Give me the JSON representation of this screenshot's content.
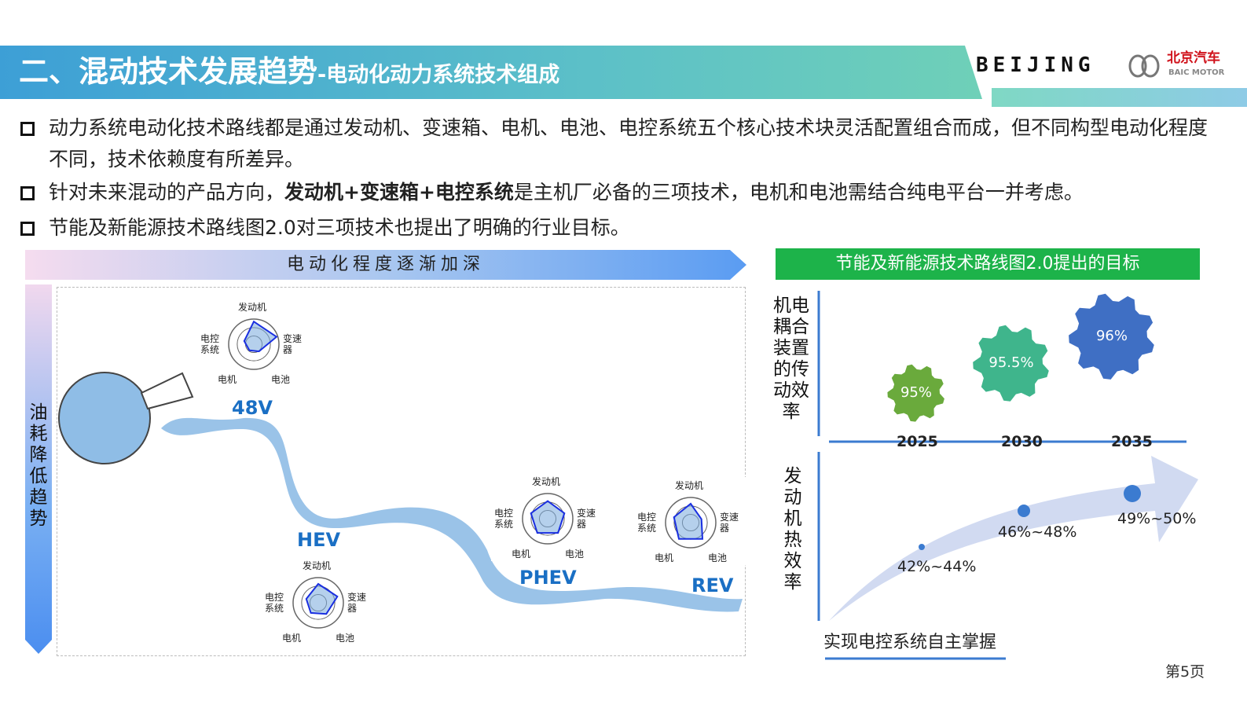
{
  "header": {
    "title_main": "二、混动技术发展趋势",
    "title_sub": "-电动化动力系统技术组成",
    "logo_beijing": "BEIJING",
    "logo_cn": "北京汽车",
    "logo_en": "BAIC MOTOR"
  },
  "bullets": [
    {
      "text": "动力系统电动化技术路线都是通过发动机、变速箱、电机、电池、电控系统五个核心技术块灵活配置组合而成，但不同构型电动化程度不同，技术依赖度有所差异。"
    },
    {
      "pre": "针对未来混动的产品方向，",
      "bold": "发动机+变速箱+电控系统",
      "post": "是主机厂必备的三项技术，电机和电池需结合纯电平台一并考虑。"
    },
    {
      "text": "节能及新能源技术路线图2.0对三项技术也提出了明确的行业目标。"
    }
  ],
  "left": {
    "banner": "电动化程度逐渐加深",
    "vertical": "油耗降低趋势",
    "axes": [
      "发动机",
      "变速器",
      "电池",
      "电机",
      "电控系统"
    ],
    "radars": [
      {
        "label": "48V",
        "values": [
          0.9,
          0.95,
          0.35,
          0.3,
          0.4
        ]
      },
      {
        "label": "HEV",
        "values": [
          0.75,
          0.8,
          0.55,
          0.5,
          0.5
        ]
      },
      {
        "label": "PHEV",
        "values": [
          0.7,
          0.7,
          0.7,
          0.7,
          0.7
        ]
      },
      {
        "label": "REV",
        "values": [
          0.75,
          0.45,
          0.8,
          0.8,
          0.7
        ]
      }
    ]
  },
  "right": {
    "banner": "节能及新能源技术路线图2.0提出的目标",
    "label_top": "机电耦合装置的传动效率",
    "label_bottom": "发动机热效率",
    "years": [
      "2025",
      "2030",
      "2035"
    ],
    "gears": [
      {
        "value": "95%",
        "color": "#6aaa3c"
      },
      {
        "value": "95.5%",
        "color": "#3fb58c"
      },
      {
        "value": "96%",
        "color": "#3f6fc4"
      }
    ],
    "thermal": [
      "42%~44%",
      "46%~48%",
      "49%~50%"
    ],
    "bottom": "实现电控系统自主掌握"
  },
  "page": "第5页"
}
